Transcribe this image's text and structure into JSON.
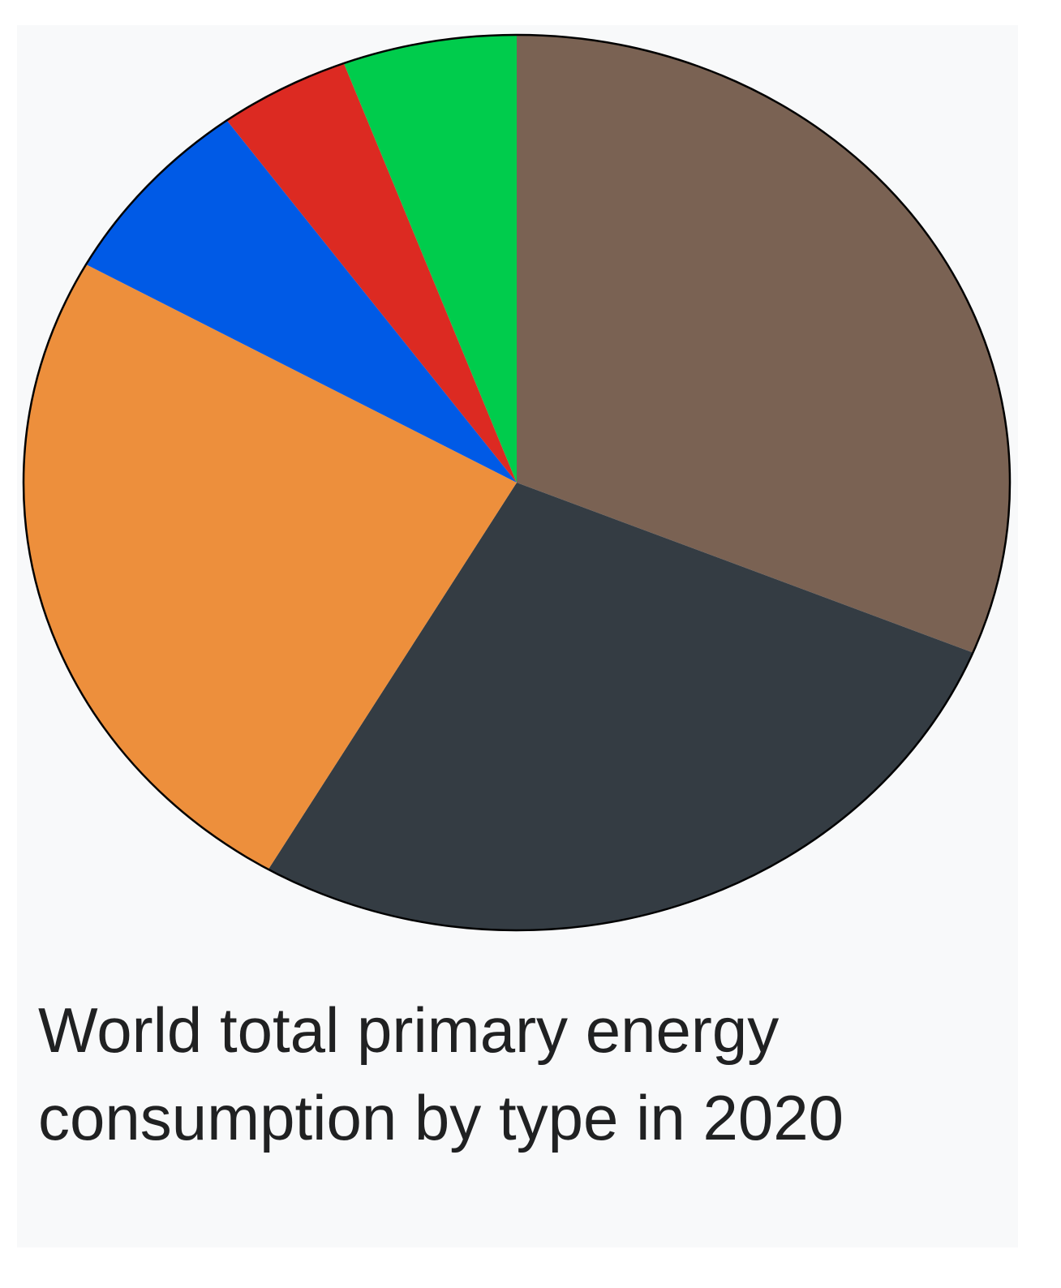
{
  "caption": "World total primary energy consumption by type in 2020",
  "chart_data": {
    "type": "pie",
    "title": "World total primary energy consumption by type in 2020",
    "start_angle_deg": 0,
    "direction": "clockwise",
    "slices": [
      {
        "value": 31.2,
        "color": "#7a6253"
      },
      {
        "value": 27.2,
        "color": "#343c43"
      },
      {
        "value": 24.7,
        "color": "#ed8f3c"
      },
      {
        "value": 6.9,
        "color": "#005ae6"
      },
      {
        "value": 4.3,
        "color": "#dc2a22"
      },
      {
        "value": 5.7,
        "color": "#00cc4c"
      }
    ]
  }
}
